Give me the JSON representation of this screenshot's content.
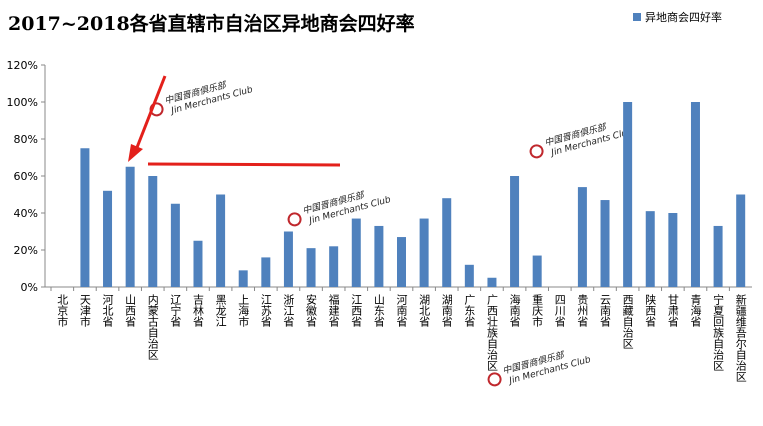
{
  "chart_data": {
    "type": "bar",
    "title": "2017~2018各省直辖市自治区异地商会四好率",
    "categories": [
      "北京市",
      "天津市",
      "河北省",
      "山西省",
      "内蒙古自治区",
      "辽宁省",
      "吉林省",
      "黑龙江",
      "上海市",
      "江苏省",
      "浙江省",
      "安徽省",
      "福建省",
      "江西省",
      "山东省",
      "河南省",
      "湖北省",
      "湖南省",
      "广东省",
      "广西壮族自治区",
      "海南省",
      "重庆市",
      "四川省",
      "贵州省",
      "云南省",
      "西藏自治区",
      "陕西省",
      "甘肃省",
      "青海省",
      "宁夏回族自治区",
      "新疆维吾尔自治区"
    ],
    "series": [
      {
        "name": "异地商会四好率",
        "color": "#4f81bd",
        "values": [
          0,
          75,
          52,
          65,
          60,
          45,
          25,
          50,
          9,
          16,
          30,
          21,
          22,
          37,
          33,
          27,
          37,
          48,
          12,
          5,
          60,
          17,
          0,
          54,
          47,
          100,
          41,
          40,
          100,
          33,
          50
        ]
      }
    ],
    "ylim": [
      0,
      120
    ],
    "yticks": [
      {
        "value": 0,
        "label": "0%"
      },
      {
        "value": 20,
        "label": "20%"
      },
      {
        "value": 40,
        "label": "40%"
      },
      {
        "value": 60,
        "label": "60%"
      },
      {
        "value": 80,
        "label": "80%"
      },
      {
        "value": 100,
        "label": "100%"
      },
      {
        "value": 120,
        "label": "120%"
      }
    ],
    "legend": "top-right",
    "watermark": {
      "cn": "中国晋商俱乐部",
      "en": "Jin Merchants Club"
    }
  }
}
